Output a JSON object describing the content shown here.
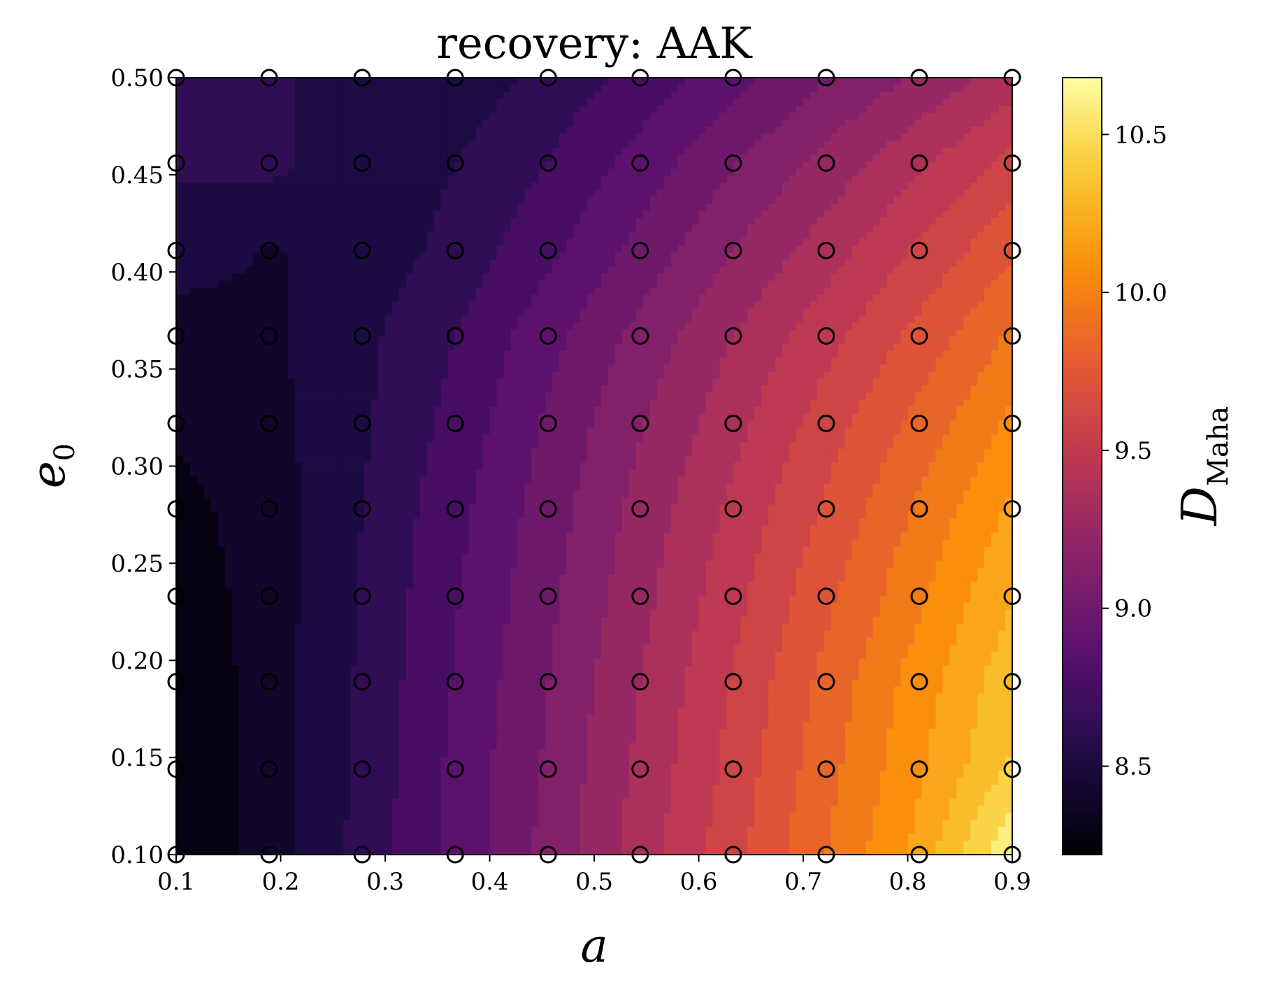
{
  "chart_data": {
    "type": "heatmap",
    "subtype": "filled-contour",
    "title": "recovery: AAK",
    "xlabel": "a",
    "ylabel_base": "e",
    "ylabel_sub": "0",
    "colorbar_label_base": "D",
    "colorbar_label_sub": "Maha",
    "colormap": "inferno",
    "xlim": [
      0.1,
      0.9
    ],
    "ylim": [
      0.1,
      0.5
    ],
    "x_ticks": [
      "0.1",
      "0.2",
      "0.3",
      "0.4",
      "0.5",
      "0.6",
      "0.7",
      "0.8",
      "0.9"
    ],
    "y_ticks": [
      "0.10",
      "0.15",
      "0.20",
      "0.25",
      "0.30",
      "0.35",
      "0.40",
      "0.45",
      "0.50"
    ],
    "colorbar_range": [
      8.22,
      10.68
    ],
    "colorbar_ticks": [
      "8.5",
      "9.0",
      "9.5",
      "10.0",
      "10.5"
    ],
    "grid_x": [
      0.1,
      0.189,
      0.278,
      0.367,
      0.456,
      0.544,
      0.633,
      0.722,
      0.811,
      0.9
    ],
    "grid_y": [
      0.1,
      0.144,
      0.189,
      0.233,
      0.278,
      0.322,
      0.367,
      0.411,
      0.456,
      0.5
    ],
    "z_rows_from_bottom": [
      [
        8.22,
        8.4,
        8.62,
        8.86,
        9.1,
        9.36,
        9.62,
        9.9,
        10.18,
        10.62
      ],
      [
        8.22,
        8.4,
        8.61,
        8.85,
        9.08,
        9.33,
        9.58,
        9.86,
        10.12,
        10.4
      ],
      [
        8.23,
        8.4,
        8.6,
        8.83,
        9.06,
        9.3,
        9.55,
        9.82,
        10.08,
        10.34
      ],
      [
        8.26,
        8.4,
        8.59,
        8.81,
        9.03,
        9.26,
        9.5,
        9.75,
        10.0,
        10.26
      ],
      [
        8.3,
        8.4,
        8.58,
        8.78,
        9.0,
        9.22,
        9.45,
        9.68,
        9.92,
        10.16
      ],
      [
        8.36,
        8.42,
        8.56,
        8.74,
        8.96,
        9.17,
        9.38,
        9.6,
        9.82,
        10.05
      ],
      [
        8.4,
        8.44,
        8.55,
        8.7,
        8.9,
        9.1,
        9.3,
        9.5,
        9.7,
        9.92
      ],
      [
        8.52,
        8.45,
        8.5,
        8.62,
        8.79,
        8.98,
        9.18,
        9.36,
        9.56,
        9.76
      ],
      [
        8.6,
        8.62,
        8.48,
        8.58,
        8.7,
        8.87,
        9.05,
        9.22,
        9.4,
        9.58
      ],
      [
        8.62,
        8.62,
        8.48,
        8.5,
        8.62,
        8.74,
        8.9,
        9.05,
        9.2,
        9.36
      ]
    ],
    "contour_levels": [
      8.22,
      8.34,
      8.46,
      8.58,
      8.7,
      8.82,
      8.94,
      9.06,
      9.18,
      9.3,
      9.42,
      9.54,
      9.66,
      9.78,
      9.9,
      10.02,
      10.14,
      10.26,
      10.38,
      10.5,
      10.68
    ],
    "markers": "open black circles at every grid point"
  }
}
